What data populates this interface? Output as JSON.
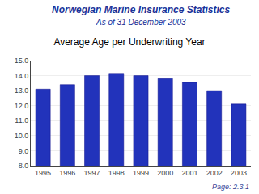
{
  "chart_data": {
    "type": "bar",
    "title": "Average Age per Underwriting Year",
    "annotations": [
      "Norwegian Marine Insurance Statistics",
      "As of 31 December 2003",
      "Page: 2.3.1"
    ],
    "categories": [
      "1995",
      "1996",
      "1997",
      "1998",
      "1999",
      "2000",
      "2001",
      "2002",
      "2003"
    ],
    "values": [
      13.1,
      13.4,
      14.0,
      14.15,
      14.0,
      13.8,
      13.55,
      13.0,
      12.1
    ],
    "color": "#2233BB",
    "ylim": [
      8.0,
      15.0
    ],
    "yticks": [
      {
        "value": 8,
        "label": "8.0"
      },
      {
        "value": 9,
        "label": "9.0"
      },
      {
        "value": 10,
        "label": "10.0"
      },
      {
        "value": 11,
        "label": "11.0"
      },
      {
        "value": 12,
        "label": "12.0"
      },
      {
        "value": 13,
        "label": "13.0"
      },
      {
        "value": 14,
        "label": "14.0"
      },
      {
        "value": 15,
        "label": "15.0"
      }
    ],
    "grid": true
  }
}
